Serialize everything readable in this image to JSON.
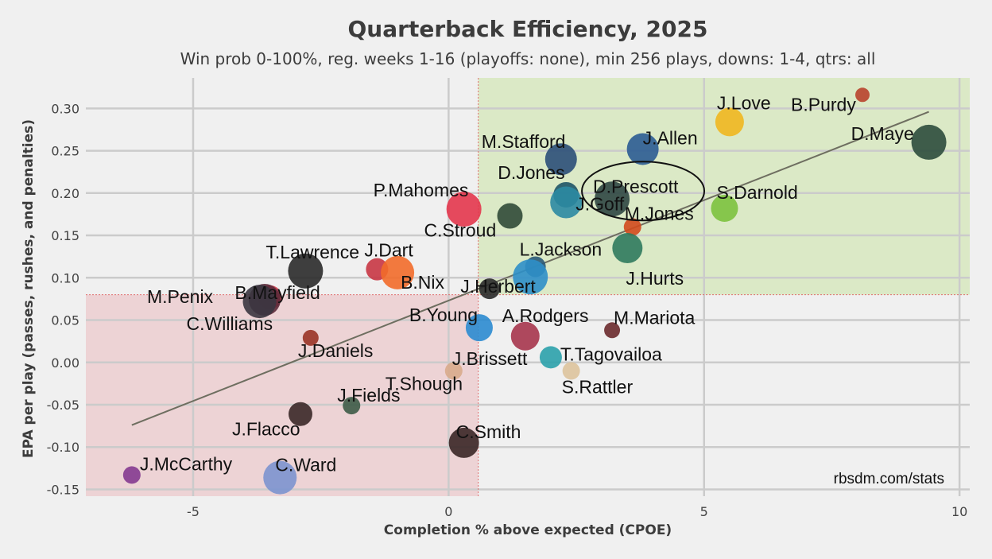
{
  "chart_data": {
    "type": "scatter",
    "title": "Quarterback Efficiency, 2025",
    "subtitle": "Win prob 0-100%, reg. weeks 1-16 (playoffs: none), min 256 plays, downs: 1-4, qtrs: all",
    "xlabel": "Completion % above expected (CPOE)",
    "ylabel": "EPA per play (passes, rushes, and penalties)",
    "xlim": [
      -7.1,
      10.2
    ],
    "ylim": [
      -0.158,
      0.336
    ],
    "x_ticks": [
      -5,
      0,
      5,
      10
    ],
    "y_ticks": [
      -0.15,
      -0.1,
      -0.05,
      0.0,
      0.05,
      0.1,
      0.15,
      0.2,
      0.25,
      0.3
    ],
    "x_tick_labels": [
      "-5",
      "0",
      "5",
      "10"
    ],
    "y_tick_labels": [
      "-0.15",
      "-0.10",
      "-0.05",
      "0.00",
      "0.05",
      "0.10",
      "0.15",
      "0.20",
      "0.25",
      "0.30"
    ],
    "grid": true,
    "reference_lines": {
      "x_mean": 0.58,
      "y_mean": 0.08
    },
    "quadrant_colors": {
      "good": "#dbe9c6",
      "bad": "#edd3d5",
      "ref_line": "#e07070"
    },
    "trend_line": {
      "x1": -6.2,
      "y1": -0.074,
      "x2": 9.4,
      "y2": 0.296,
      "color": "#6e6e60"
    },
    "highlight": {
      "player": "D.Prescott",
      "shape": "ellipse"
    },
    "source": "rbsdm.com/stats",
    "points": [
      {
        "name": "B.Purdy",
        "x": 8.1,
        "y": 0.316,
        "size": 9,
        "color": "#b8432b"
      },
      {
        "name": "J.Love",
        "x": 5.5,
        "y": 0.284,
        "size": 18,
        "color": "#f0b71f"
      },
      {
        "name": "D.Maye",
        "x": 9.4,
        "y": 0.26,
        "size": 22,
        "color": "#2c4c3c"
      },
      {
        "name": "J.Allen",
        "x": 3.8,
        "y": 0.252,
        "size": 20,
        "color": "#2b5c92"
      },
      {
        "name": "M.Stafford",
        "x": 2.2,
        "y": 0.24,
        "size": 20,
        "color": "#2b4f78"
      },
      {
        "name": "D.Jones",
        "x": 2.3,
        "y": 0.198,
        "size": 16,
        "color": "#1e5466"
      },
      {
        "name": "D.Prescott",
        "x": 3.2,
        "y": 0.193,
        "size": 22,
        "color": "#2f4743"
      },
      {
        "name": "J.Goff",
        "x": 2.3,
        "y": 0.189,
        "size": 20,
        "color": "#2c8aa2"
      },
      {
        "name": "S.Darnold",
        "x": 5.4,
        "y": 0.182,
        "size": 17,
        "color": "#7cc23e"
      },
      {
        "name": "P.Mahomes",
        "x": 0.3,
        "y": 0.181,
        "size": 22,
        "color": "#e3364d"
      },
      {
        "name": "C.Stroud",
        "x": 1.2,
        "y": 0.173,
        "size": 16,
        "color": "#304a37"
      },
      {
        "name": "M.Jones",
        "x": 3.6,
        "y": 0.16,
        "size": 11,
        "color": "#d24a1d"
      },
      {
        "name": "J.Hurts",
        "x": 3.5,
        "y": 0.135,
        "size": 19,
        "color": "#2f7a5d"
      },
      {
        "name": "L.Jackson",
        "x": 1.7,
        "y": 0.113,
        "size": 13,
        "color": "#2a5a78"
      },
      {
        "name": "T.Lawrence",
        "x": -2.8,
        "y": 0.108,
        "size": 22,
        "color": "#2a2a2a"
      },
      {
        "name": "J.Dart",
        "x": -1.4,
        "y": 0.11,
        "size": 14,
        "color": "#c83644"
      },
      {
        "name": "B.Nix",
        "x": -1.0,
        "y": 0.106,
        "size": 21,
        "color": "#f26b2a"
      },
      {
        "name": "J.Herbert",
        "x": 1.6,
        "y": 0.101,
        "size": 22,
        "color": "#2e8fc8"
      },
      {
        "name": "A.Rodgers",
        "x": 0.8,
        "y": 0.087,
        "size": 13,
        "color": "#2a2a2a"
      },
      {
        "name": "B.Mayfield",
        "x": -3.5,
        "y": 0.077,
        "size": 15,
        "color": "#cf3c4a"
      },
      {
        "name": "M.Penix",
        "x": -3.6,
        "y": 0.074,
        "size": 20,
        "color": "#5a2a3a"
      },
      {
        "name": "C.Williams",
        "x": -3.7,
        "y": 0.072,
        "size": 21,
        "color": "#3a3640"
      },
      {
        "name": "B.Young",
        "x": 0.6,
        "y": 0.041,
        "size": 17,
        "color": "#2b8bd0"
      },
      {
        "name": "M.Mariota",
        "x": 3.2,
        "y": 0.038,
        "size": 10,
        "color": "#6a2a2c"
      },
      {
        "name": "J.Brissett",
        "x": 1.5,
        "y": 0.031,
        "size": 18,
        "color": "#a6354c"
      },
      {
        "name": "J.Daniels",
        "x": -2.7,
        "y": 0.029,
        "size": 10,
        "color": "#993326"
      },
      {
        "name": "T.Tagovailoa",
        "x": 2.0,
        "y": 0.006,
        "size": 14,
        "color": "#2ba1ab"
      },
      {
        "name": "S.Rattler",
        "x": 2.4,
        "y": -0.01,
        "size": 11,
        "color": "#ddc39c"
      },
      {
        "name": "T.Shough",
        "x": 0.1,
        "y": -0.01,
        "size": 11,
        "color": "#d8ab8c"
      },
      {
        "name": "J.Fields",
        "x": -1.9,
        "y": -0.051,
        "size": 11,
        "color": "#3d5b47"
      },
      {
        "name": "J.Flacco",
        "x": -2.9,
        "y": -0.061,
        "size": 15,
        "color": "#3a2828"
      },
      {
        "name": "C.Smith",
        "x": 0.3,
        "y": -0.095,
        "size": 19,
        "color": "#3a2626"
      },
      {
        "name": "C.Ward",
        "x": -3.3,
        "y": -0.136,
        "size": 21,
        "color": "#7c93cf"
      },
      {
        "name": "J.McCarthy",
        "x": -6.2,
        "y": -0.133,
        "size": 11,
        "color": "#843a90"
      }
    ]
  }
}
